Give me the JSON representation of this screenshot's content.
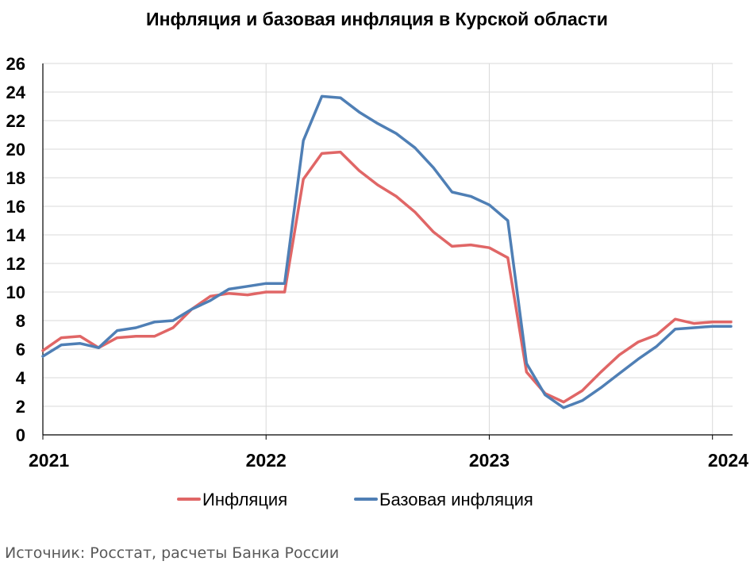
{
  "chart_data": {
    "type": "line",
    "title": "Инфляция и базовая инфляция в Курской области",
    "xlabel": "",
    "ylabel": "",
    "ylim": [
      0,
      26
    ],
    "xlim": [
      2021.0,
      2024.09
    ],
    "yticks": [
      "0",
      "2",
      "4",
      "6",
      "8",
      "10",
      "12",
      "14",
      "16",
      "18",
      "20",
      "22",
      "24",
      "26"
    ],
    "xticks": [
      {
        "label": "2021",
        "value": 2021
      },
      {
        "label": "2022",
        "value": 2022
      },
      {
        "label": "2023",
        "value": 2023
      },
      {
        "label": "2024",
        "value": 2024
      }
    ],
    "grid": true,
    "legend_position": "bottom",
    "source": "Источник: Росстат, расчеты Банка России",
    "x": [
      2021.0,
      2021.083,
      2021.167,
      2021.25,
      2021.333,
      2021.417,
      2021.5,
      2021.583,
      2021.667,
      2021.75,
      2021.833,
      2021.917,
      2022.0,
      2022.083,
      2022.167,
      2022.25,
      2022.333,
      2022.417,
      2022.5,
      2022.583,
      2022.667,
      2022.75,
      2022.833,
      2022.917,
      2023.0,
      2023.083,
      2023.167,
      2023.25,
      2023.333,
      2023.417,
      2023.5,
      2023.583,
      2023.667,
      2023.75,
      2023.833,
      2023.917,
      2024.0,
      2024.083
    ],
    "series": [
      {
        "name": "Инфляция",
        "color": "#e06666",
        "values": [
          5.9,
          6.8,
          6.9,
          6.1,
          6.8,
          6.9,
          6.9,
          7.5,
          8.8,
          9.7,
          9.9,
          9.8,
          10.0,
          10.0,
          17.9,
          19.7,
          19.8,
          18.5,
          17.5,
          16.7,
          15.6,
          14.2,
          13.2,
          13.3,
          13.1,
          12.4,
          4.4,
          2.9,
          2.3,
          3.1,
          4.4,
          5.6,
          6.5,
          7.0,
          8.1,
          7.8,
          7.9,
          7.9
        ]
      },
      {
        "name": "Базовая инфляция",
        "color": "#4f7fb5",
        "values": [
          5.5,
          6.3,
          6.4,
          6.1,
          7.3,
          7.5,
          7.9,
          8.0,
          8.8,
          9.4,
          10.2,
          10.4,
          10.6,
          10.6,
          20.6,
          23.7,
          23.6,
          22.6,
          21.8,
          21.1,
          20.1,
          18.7,
          17.0,
          16.7,
          16.1,
          15.0,
          5.0,
          2.8,
          1.9,
          2.4,
          3.3,
          4.3,
          5.3,
          6.2,
          7.4,
          7.5,
          7.6,
          7.6
        ]
      }
    ]
  }
}
